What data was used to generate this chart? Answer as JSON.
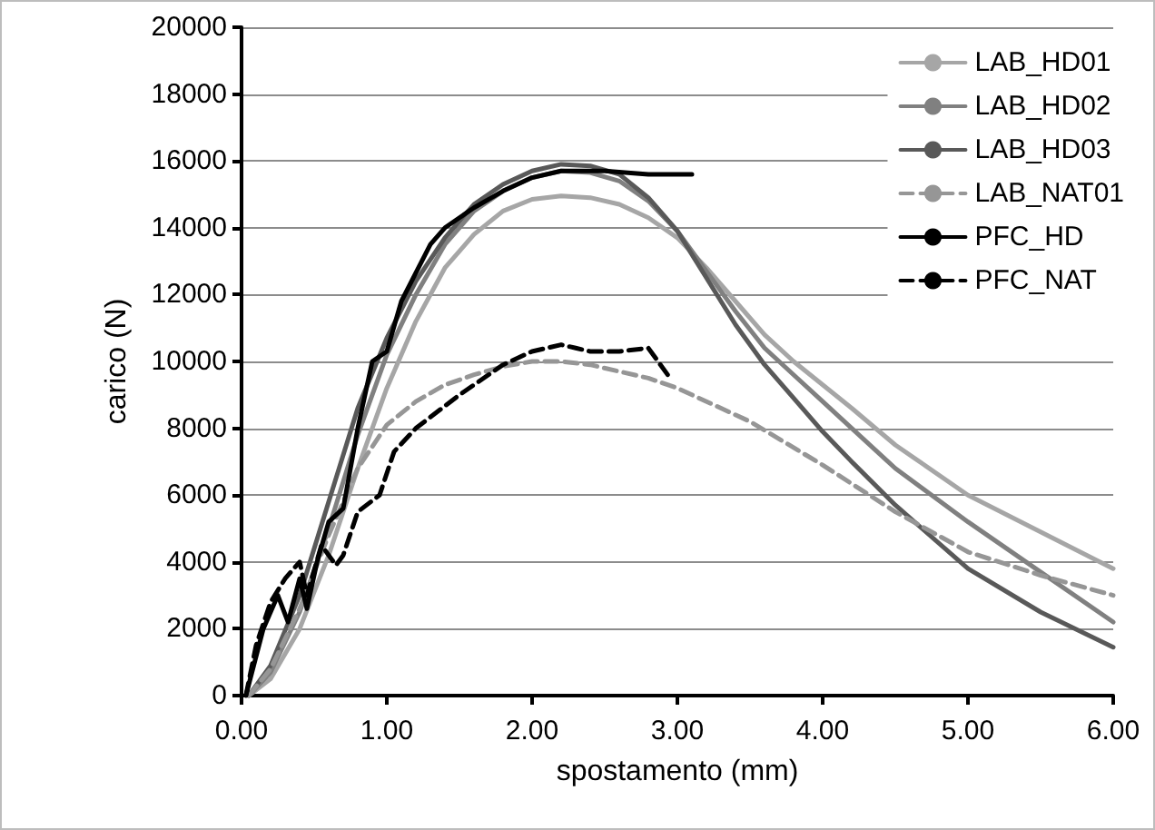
{
  "chart_data": {
    "type": "line",
    "xlabel": "spostamento (mm)",
    "ylabel": "carico (N)",
    "xlim": [
      0,
      6
    ],
    "xticks": [
      {
        "value": 0,
        "label": "0.00"
      },
      {
        "value": 1,
        "label": "1.00"
      },
      {
        "value": 2,
        "label": "2.00"
      },
      {
        "value": 3,
        "label": "3.00"
      },
      {
        "value": 4,
        "label": "4.00"
      },
      {
        "value": 5,
        "label": "5.00"
      },
      {
        "value": 6,
        "label": "6.00"
      }
    ],
    "ylim": [
      0,
      20000
    ],
    "yticks": [
      0,
      2000,
      4000,
      6000,
      8000,
      10000,
      12000,
      14000,
      16000,
      18000,
      20000
    ],
    "grid": "y",
    "legend": "top right",
    "marker": "none",
    "series": [
      {
        "name": "LAB_HD01",
        "color": "#a6a6a6",
        "line_style": "solid",
        "x": [
          0.05,
          0.2,
          0.4,
          0.6,
          0.8,
          1.0,
          1.2,
          1.4,
          1.6,
          1.8,
          2.0,
          2.2,
          2.4,
          2.6,
          2.8,
          3.0,
          3.2,
          3.4,
          3.6,
          3.8,
          4.0,
          4.2,
          4.5,
          5.0,
          5.5,
          6.0
        ],
        "values": [
          0,
          500,
          2000,
          4200,
          6800,
          9200,
          11200,
          12800,
          13800,
          14500,
          14850,
          14950,
          14900,
          14700,
          14300,
          13700,
          12800,
          11800,
          10800,
          10000,
          9300,
          8600,
          7500,
          6000,
          4900,
          3800
        ]
      },
      {
        "name": "LAB_HD02",
        "color": "#808080",
        "line_style": "solid",
        "x": [
          0.05,
          0.2,
          0.4,
          0.6,
          0.8,
          1.0,
          1.2,
          1.4,
          1.6,
          1.8,
          2.0,
          2.2,
          2.4,
          2.6,
          2.8,
          3.0,
          3.2,
          3.4,
          3.6,
          3.8,
          4.0,
          4.2,
          4.5,
          5.0,
          5.5,
          6.0
        ],
        "values": [
          0,
          700,
          2500,
          5000,
          7800,
          10200,
          12000,
          13500,
          14500,
          15100,
          15500,
          15700,
          15650,
          15400,
          14800,
          13900,
          12700,
          11500,
          10400,
          9600,
          8800,
          8000,
          6800,
          5200,
          3700,
          2200
        ]
      },
      {
        "name": "LAB_HD03",
        "color": "#595959",
        "line_style": "solid",
        "x": [
          0.05,
          0.2,
          0.4,
          0.6,
          0.8,
          1.0,
          1.2,
          1.4,
          1.6,
          1.8,
          2.0,
          2.2,
          2.4,
          2.6,
          2.8,
          3.0,
          3.2,
          3.4,
          3.6,
          3.8,
          4.0,
          4.2,
          4.5,
          5.0,
          5.5,
          6.0
        ],
        "values": [
          0,
          900,
          3000,
          5800,
          8600,
          10700,
          12400,
          13700,
          14700,
          15300,
          15700,
          15900,
          15850,
          15600,
          14900,
          13900,
          12500,
          11100,
          9900,
          8900,
          7900,
          7000,
          5700,
          3800,
          2500,
          1450
        ]
      },
      {
        "name": "LAB_NAT01",
        "color": "#969696",
        "line_style": "dashed",
        "x": [
          0.05,
          0.2,
          0.4,
          0.6,
          0.8,
          1.0,
          1.2,
          1.4,
          1.6,
          1.8,
          2.0,
          2.2,
          2.4,
          2.6,
          2.8,
          3.0,
          3.5,
          4.0,
          4.5,
          5.0,
          5.5,
          6.0
        ],
        "values": [
          0,
          800,
          2600,
          4800,
          6800,
          8100,
          8800,
          9300,
          9600,
          9850,
          10000,
          10000,
          9900,
          9700,
          9500,
          9200,
          8200,
          6900,
          5500,
          4300,
          3600,
          3000
        ]
      },
      {
        "name": "PFC_HD",
        "color": "#000000",
        "line_style": "solid",
        "x": [
          0.03,
          0.15,
          0.25,
          0.32,
          0.4,
          0.45,
          0.52,
          0.6,
          0.7,
          0.8,
          0.9,
          1.0,
          1.1,
          1.3,
          1.4,
          1.6,
          1.8,
          2.0,
          2.2,
          2.5,
          2.8,
          3.1
        ],
        "values": [
          0,
          2000,
          3000,
          2200,
          3500,
          2600,
          4000,
          5200,
          5600,
          8000,
          10000,
          10300,
          11800,
          13500,
          14000,
          14600,
          15100,
          15500,
          15700,
          15700,
          15600,
          15600
        ]
      },
      {
        "name": "PFC_NAT",
        "color": "#000000",
        "line_style": "dashed",
        "x": [
          0.03,
          0.1,
          0.2,
          0.3,
          0.4,
          0.45,
          0.55,
          0.65,
          0.7,
          0.8,
          0.95,
          1.05,
          1.2,
          1.5,
          1.8,
          2.0,
          2.2,
          2.3,
          2.4,
          2.6,
          2.8,
          2.95
        ],
        "values": [
          0,
          1500,
          2800,
          3500,
          4000,
          3000,
          4500,
          3900,
          4200,
          5500,
          6000,
          7300,
          8000,
          9000,
          9900,
          10300,
          10500,
          10400,
          10300,
          10300,
          10400,
          9500
        ]
      }
    ]
  }
}
